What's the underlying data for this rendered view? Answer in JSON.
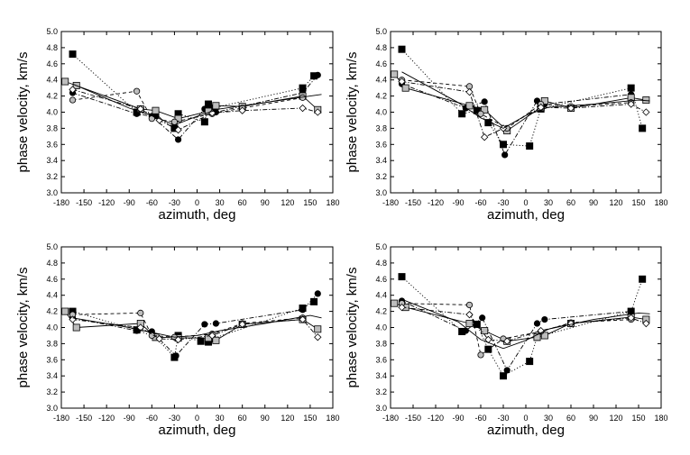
{
  "chart_data": [
    {
      "type": "scatter",
      "xlabel": "azimuth, deg",
      "ylabel": "phase velocity, km/s",
      "xlim": [
        -180,
        180
      ],
      "ylim": [
        3.0,
        5.0
      ],
      "xticks": [
        "-180",
        "-150",
        "-120",
        "-90",
        "-60",
        "-30",
        "0",
        "30",
        "60",
        "90",
        "120",
        "150",
        "180"
      ],
      "yticks": [
        "3.0",
        "3.2",
        "3.4",
        "3.6",
        "3.8",
        "4.0",
        "4.2",
        "4.4",
        "4.6",
        "4.8",
        "5.0"
      ],
      "series": [
        {
          "marker": "square-black",
          "line": "dotted",
          "points": [
            [
              -165,
              4.72
            ],
            [
              -80,
              4.0
            ],
            [
              -55,
              3.96
            ],
            [
              -30,
              3.8
            ],
            [
              -25,
              3.98
            ],
            [
              10,
              3.88
            ],
            [
              15,
              4.1
            ],
            [
              20,
              4.05
            ],
            [
              140,
              4.3
            ],
            [
              155,
              4.45
            ]
          ]
        },
        {
          "marker": "circle-black",
          "line": "dashdot",
          "points": [
            [
              -165,
              4.24
            ],
            [
              -80,
              3.98
            ],
            [
              -60,
              3.95
            ],
            [
              -25,
              3.66
            ],
            [
              10,
              4.04
            ],
            [
              25,
              4.0
            ],
            [
              140,
              4.24
            ],
            [
              160,
              4.46
            ]
          ]
        },
        {
          "marker": "square-gray",
          "line": "solid",
          "points": [
            [
              -175,
              4.38
            ],
            [
              -160,
              4.33
            ],
            [
              -75,
              4.04
            ],
            [
              -55,
              4.02
            ],
            [
              -25,
              3.92
            ],
            [
              15,
              4.01
            ],
            [
              25,
              4.08
            ],
            [
              60,
              4.07
            ],
            [
              140,
              4.2
            ],
            [
              160,
              4.03
            ]
          ]
        },
        {
          "marker": "circle-gray",
          "line": "dashed",
          "points": [
            [
              -165,
              4.15
            ],
            [
              -80,
              4.26
            ],
            [
              -60,
              3.92
            ],
            [
              -30,
              3.88
            ],
            [
              20,
              3.98
            ],
            [
              60,
              4.05
            ],
            [
              140,
              4.18
            ]
          ]
        },
        {
          "marker": "diamond-white",
          "line": "dashdot",
          "points": [
            [
              -165,
              4.28
            ],
            [
              -75,
              4.04
            ],
            [
              -50,
              3.9
            ],
            [
              -25,
              3.78
            ],
            [
              20,
              3.99
            ],
            [
              60,
              4.02
            ],
            [
              140,
              4.05
            ],
            [
              160,
              4.0
            ]
          ]
        },
        {
          "marker": "none",
          "line": "solid",
          "points": [
            [
              -165,
              4.35
            ],
            [
              -90,
              4.05
            ],
            [
              -60,
              3.96
            ],
            [
              -30,
              3.84
            ],
            [
              0,
              3.95
            ],
            [
              30,
              4.04
            ],
            [
              90,
              4.12
            ],
            [
              150,
              4.2
            ],
            [
              165,
              4.22
            ]
          ]
        }
      ]
    },
    {
      "type": "scatter",
      "xlabel": "azimuth, deg",
      "ylabel": "phase velocity, km/s",
      "xlim": [
        -180,
        180
      ],
      "ylim": [
        3.0,
        5.0
      ],
      "xticks": [
        "-180",
        "-150",
        "-120",
        "-90",
        "-60",
        "-30",
        "0",
        "30",
        "60",
        "90",
        "120",
        "150",
        "180"
      ],
      "yticks": [
        "3.0",
        "3.2",
        "3.4",
        "3.6",
        "3.8",
        "4.0",
        "4.2",
        "4.4",
        "4.6",
        "4.8",
        "5.0"
      ],
      "series": [
        {
          "marker": "square-black",
          "line": "dotted",
          "points": [
            [
              -165,
              4.78
            ],
            [
              -85,
              3.98
            ],
            [
              -65,
              4.02
            ],
            [
              -50,
              3.87
            ],
            [
              -30,
              3.6
            ],
            [
              5,
              3.58
            ],
            [
              20,
              4.04
            ],
            [
              140,
              4.3
            ],
            [
              155,
              3.8
            ]
          ]
        },
        {
          "marker": "circle-black",
          "line": "dashdot",
          "points": [
            [
              -165,
              4.35
            ],
            [
              -80,
              4.05
            ],
            [
              -55,
              4.13
            ],
            [
              -28,
              3.47
            ],
            [
              15,
              4.14
            ],
            [
              25,
              4.1
            ],
            [
              140,
              4.22
            ]
          ]
        },
        {
          "marker": "square-gray",
          "line": "solid",
          "points": [
            [
              -175,
              4.47
            ],
            [
              -160,
              4.3
            ],
            [
              -75,
              4.08
            ],
            [
              -55,
              4.03
            ],
            [
              -25,
              3.77
            ],
            [
              20,
              4.06
            ],
            [
              25,
              4.14
            ],
            [
              60,
              4.05
            ],
            [
              140,
              4.18
            ],
            [
              160,
              4.15
            ]
          ]
        },
        {
          "marker": "circle-gray",
          "line": "dashed",
          "points": [
            [
              -165,
              4.4
            ],
            [
              -75,
              4.32
            ],
            [
              -60,
              3.98
            ],
            [
              -25,
              3.8
            ],
            [
              20,
              4.1
            ],
            [
              60,
              4.07
            ],
            [
              140,
              4.12
            ]
          ]
        },
        {
          "marker": "diamond-white",
          "line": "dashdot",
          "points": [
            [
              -165,
              4.38
            ],
            [
              -75,
              4.25
            ],
            [
              -55,
              3.69
            ],
            [
              -30,
              3.8
            ],
            [
              20,
              4.06
            ],
            [
              60,
              4.05
            ],
            [
              140,
              4.1
            ],
            [
              160,
              4.0
            ]
          ]
        },
        {
          "marker": "none",
          "line": "solid",
          "points": [
            [
              -165,
              4.5
            ],
            [
              -90,
              4.12
            ],
            [
              -60,
              3.93
            ],
            [
              -30,
              3.8
            ],
            [
              0,
              3.96
            ],
            [
              30,
              4.06
            ],
            [
              90,
              4.1
            ],
            [
              150,
              4.15
            ],
            [
              165,
              4.14
            ]
          ]
        }
      ]
    },
    {
      "type": "scatter",
      "xlabel": "azimuth, deg",
      "ylabel": "phase velocity, km/s",
      "xlim": [
        -180,
        180
      ],
      "ylim": [
        3.0,
        5.0
      ],
      "xticks": [
        "-180",
        "-150",
        "-120",
        "-90",
        "-60",
        "-30",
        "0",
        "30",
        "60",
        "90",
        "120",
        "150",
        "180"
      ],
      "yticks": [
        "3.0",
        "3.2",
        "3.4",
        "3.6",
        "3.8",
        "4.0",
        "4.2",
        "4.4",
        "4.6",
        "4.8",
        "5.0"
      ],
      "series": [
        {
          "marker": "square-black",
          "line": "dotted",
          "points": [
            [
              -165,
              4.2
            ],
            [
              -80,
              3.97
            ],
            [
              -55,
              3.88
            ],
            [
              -30,
              3.63
            ],
            [
              -25,
              3.9
            ],
            [
              5,
              3.83
            ],
            [
              15,
              3.82
            ],
            [
              20,
              3.86
            ],
            [
              140,
              4.24
            ],
            [
              155,
              4.32
            ]
          ]
        },
        {
          "marker": "circle-black",
          "line": "dashdot",
          "points": [
            [
              -165,
              4.12
            ],
            [
              -80,
              3.96
            ],
            [
              -60,
              3.95
            ],
            [
              -28,
              3.65
            ],
            [
              10,
              4.04
            ],
            [
              25,
              4.05
            ],
            [
              140,
              4.22
            ],
            [
              160,
              4.42
            ]
          ]
        },
        {
          "marker": "square-gray",
          "line": "solid",
          "points": [
            [
              -175,
              4.2
            ],
            [
              -160,
              4.0
            ],
            [
              -75,
              4.05
            ],
            [
              -55,
              3.88
            ],
            [
              -25,
              3.87
            ],
            [
              15,
              3.87
            ],
            [
              25,
              3.84
            ],
            [
              60,
              4.04
            ],
            [
              140,
              4.1
            ],
            [
              160,
              3.98
            ]
          ]
        },
        {
          "marker": "circle-gray",
          "line": "dashed",
          "points": [
            [
              -165,
              4.16
            ],
            [
              -75,
              4.18
            ],
            [
              -60,
              3.9
            ],
            [
              -30,
              3.88
            ],
            [
              20,
              3.92
            ],
            [
              60,
              4.05
            ],
            [
              140,
              4.12
            ]
          ]
        },
        {
          "marker": "diamond-white",
          "line": "dashdot",
          "points": [
            [
              -165,
              4.1
            ],
            [
              -75,
              4.0
            ],
            [
              -50,
              3.86
            ],
            [
              -25,
              3.85
            ],
            [
              20,
              3.9
            ],
            [
              60,
              4.04
            ],
            [
              140,
              4.1
            ],
            [
              160,
              3.88
            ]
          ]
        },
        {
          "marker": "none",
          "line": "solid",
          "points": [
            [
              -165,
              4.12
            ],
            [
              -90,
              4.0
            ],
            [
              -60,
              3.94
            ],
            [
              -30,
              3.88
            ],
            [
              0,
              3.9
            ],
            [
              30,
              3.96
            ],
            [
              90,
              4.05
            ],
            [
              150,
              4.15
            ],
            [
              165,
              4.12
            ]
          ]
        }
      ]
    },
    {
      "type": "scatter",
      "xlabel": "azimuth, deg",
      "ylabel": "phase velocity, km/s",
      "xlim": [
        -180,
        180
      ],
      "ylim": [
        3.0,
        5.0
      ],
      "xticks": [
        "-180",
        "-150",
        "-120",
        "-90",
        "-60",
        "-30",
        "0",
        "30",
        "60",
        "90",
        "120",
        "150",
        "180"
      ],
      "yticks": [
        "3.0",
        "3.2",
        "3.4",
        "3.6",
        "3.8",
        "4.0",
        "4.2",
        "4.4",
        "4.6",
        "4.8",
        "5.0"
      ],
      "series": [
        {
          "marker": "square-black",
          "line": "dotted",
          "points": [
            [
              -165,
              4.63
            ],
            [
              -85,
              3.95
            ],
            [
              -65,
              4.04
            ],
            [
              -50,
              3.73
            ],
            [
              -30,
              3.4
            ],
            [
              5,
              3.58
            ],
            [
              15,
              3.88
            ],
            [
              140,
              4.2
            ],
            [
              155,
              4.6
            ]
          ]
        },
        {
          "marker": "circle-black",
          "line": "dashdot",
          "points": [
            [
              -165,
              4.33
            ],
            [
              -80,
              3.96
            ],
            [
              -58,
              4.12
            ],
            [
              -25,
              3.47
            ],
            [
              15,
              4.05
            ],
            [
              25,
              4.1
            ],
            [
              140,
              4.2
            ]
          ]
        },
        {
          "marker": "square-gray",
          "line": "solid",
          "points": [
            [
              -175,
              4.3
            ],
            [
              -160,
              4.25
            ],
            [
              -75,
              4.05
            ],
            [
              -55,
              3.96
            ],
            [
              -25,
              3.83
            ],
            [
              15,
              3.88
            ],
            [
              25,
              3.9
            ],
            [
              60,
              4.05
            ],
            [
              140,
              4.13
            ],
            [
              160,
              4.1
            ]
          ]
        },
        {
          "marker": "circle-gray",
          "line": "dashed",
          "points": [
            [
              -165,
              4.3
            ],
            [
              -75,
              4.28
            ],
            [
              -60,
              3.66
            ],
            [
              -30,
              3.86
            ],
            [
              20,
              3.95
            ],
            [
              60,
              4.06
            ],
            [
              140,
              4.1
            ]
          ]
        },
        {
          "marker": "diamond-white",
          "line": "dashdot",
          "points": [
            [
              -165,
              4.25
            ],
            [
              -75,
              4.16
            ],
            [
              -50,
              3.85
            ],
            [
              -25,
              3.83
            ],
            [
              20,
              3.96
            ],
            [
              60,
              4.05
            ],
            [
              140,
              4.12
            ],
            [
              160,
              4.05
            ]
          ]
        },
        {
          "marker": "none",
          "line": "solid",
          "points": [
            [
              -165,
              4.35
            ],
            [
              -90,
              4.07
            ],
            [
              -60,
              3.85
            ],
            [
              -30,
              3.74
            ],
            [
              0,
              3.84
            ],
            [
              30,
              3.98
            ],
            [
              90,
              4.1
            ],
            [
              150,
              4.18
            ],
            [
              165,
              4.17
            ]
          ]
        }
      ]
    }
  ]
}
